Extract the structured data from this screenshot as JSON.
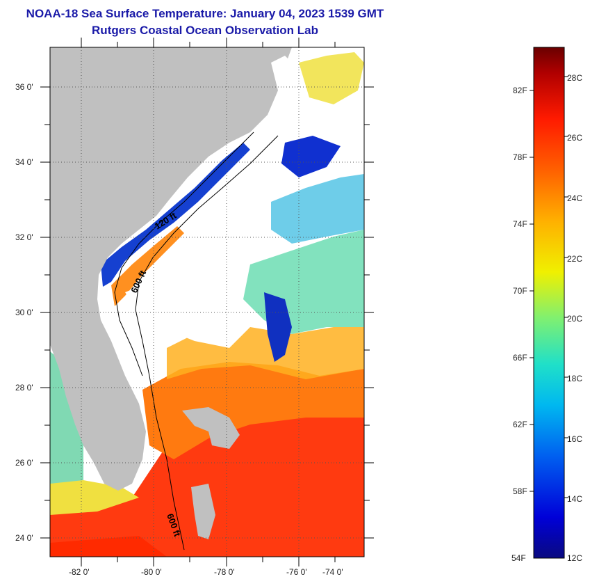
{
  "title": {
    "line1": "NOAA-18 Sea Surface Temperature:  January 04, 2023 1539 GMT",
    "line2": "Rutgers Coastal Ocean Observation Lab"
  },
  "map": {
    "lat_labels": [
      "36 0'",
      "34 0'",
      "32 0'",
      "30 0'",
      "28 0'",
      "26 0'",
      "24 0'"
    ],
    "lon_labels": [
      "-82 0'",
      "-80 0'",
      "-78 0'",
      "-76 0'",
      "-74 0'"
    ],
    "contour_labels": [
      "120 ft",
      "600 ft",
      "600 ft"
    ],
    "land_color": "#c0c0c0",
    "cloud_color": "#ffffff"
  },
  "colorbar": {
    "fahrenheit": [
      "82F",
      "78F",
      "74F",
      "70F",
      "66F",
      "62F",
      "58F",
      "54F"
    ],
    "celsius": [
      "28C",
      "26C",
      "24C",
      "22C",
      "20C",
      "18C",
      "16C",
      "14C",
      "12C"
    ]
  }
}
